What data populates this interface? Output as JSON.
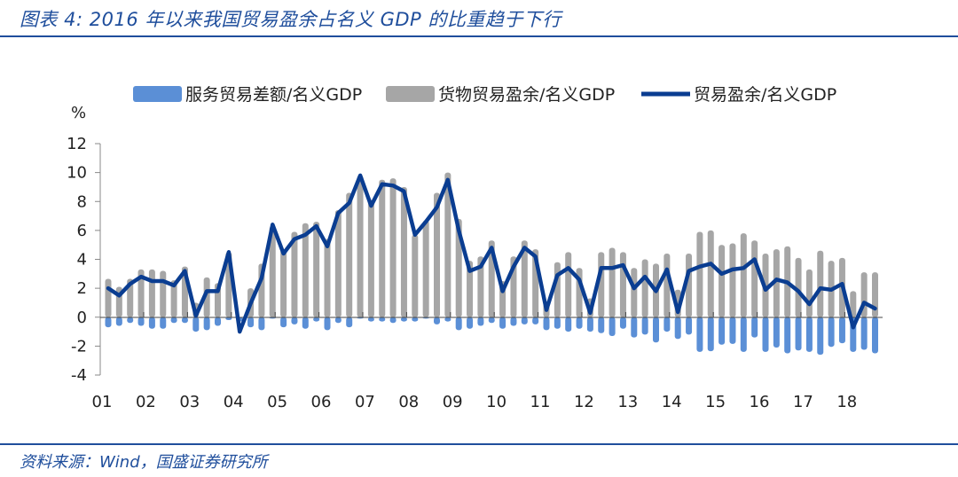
{
  "title": "图表 4:  2016 年以来我国贸易盈余占名义 GDP 的比重趋于下行",
  "source": "资料来源：Wind，国盛证券研究所",
  "chart_data": {
    "type": "bar+line",
    "ylabel": "%",
    "ylim": [
      -4,
      12
    ],
    "yticks": [
      "12",
      "10",
      "8",
      "6",
      "4",
      "2",
      "0",
      "-2",
      "-4"
    ],
    "xticks": [
      "01",
      "02",
      "03",
      "04",
      "05",
      "06",
      "07",
      "08",
      "09",
      "10",
      "11",
      "12",
      "13",
      "14",
      "15",
      "16",
      "17",
      "18"
    ],
    "x_frequency": "quarterly, 2001Q1–2018Q3",
    "legend_position": "top",
    "colors": {
      "services": "#5b8fd6",
      "goods": "#a6a6a6",
      "total": "#0a3d91"
    },
    "series": [
      {
        "name": "服务贸易差额/名义GDP",
        "kind": "bar",
        "values": [
          -0.7,
          -0.6,
          -0.4,
          -0.6,
          -0.8,
          -0.8,
          -0.4,
          -0.4,
          -1.0,
          -0.9,
          -0.6,
          -0.2,
          -0.3,
          -0.7,
          -0.9,
          -0.1,
          -0.7,
          -0.5,
          -0.8,
          -0.3,
          -0.9,
          -0.4,
          -0.7,
          -0.1,
          -0.3,
          -0.3,
          -0.4,
          -0.3,
          -0.3,
          -0.1,
          -0.5,
          -0.3,
          -0.9,
          -0.8,
          -0.6,
          -0.4,
          -0.8,
          -0.6,
          -0.5,
          -0.5,
          -0.9,
          -0.8,
          -1.0,
          -0.8,
          -1.0,
          -1.1,
          -1.3,
          -0.8,
          -1.4,
          -1.2,
          -1.75,
          -1.0,
          -1.5,
          -1.2,
          -2.4,
          -2.35,
          -1.9,
          -1.85,
          -2.4,
          -1.4,
          -2.4,
          -2.1,
          -2.5,
          -2.3,
          -2.4,
          -2.6,
          -2.05,
          -1.8,
          -2.4,
          -2.25,
          -2.5
        ]
      },
      {
        "name": "货物贸易盈余/名义GDP",
        "kind": "bar",
        "values": [
          2.65,
          2.1,
          2.65,
          3.3,
          3.3,
          3.2,
          2.55,
          3.5,
          1.0,
          2.75,
          2.35,
          4.5,
          0,
          2.0,
          3.7,
          6.3,
          4.7,
          5.9,
          6.5,
          6.6,
          5.4,
          7.4,
          8.6,
          9.8,
          8.1,
          9.5,
          9.6,
          9.0,
          5.7,
          6.7,
          8.6,
          10.0,
          6.8,
          3.9,
          4.2,
          5.3,
          2.5,
          4.2,
          5.3,
          4.7,
          1.0,
          3.8,
          4.5,
          3.4,
          1.3,
          4.5,
          4.8,
          4.5,
          3.4,
          4.0,
          3.7,
          4.4,
          1.9,
          4.4,
          5.9,
          6.0,
          5.0,
          5.1,
          5.8,
          5.3,
          4.4,
          4.7,
          4.9,
          4.1,
          3.3,
          4.6,
          3.9,
          4.1,
          1.8,
          3.1,
          3.1
        ]
      },
      {
        "name": "贸易盈余/名义GDP",
        "kind": "line",
        "values": [
          2.0,
          1.5,
          2.3,
          2.8,
          2.5,
          2.5,
          2.2,
          3.2,
          0.1,
          1.8,
          1.8,
          4.5,
          -1.0,
          0.95,
          2.7,
          6.4,
          4.4,
          5.4,
          5.7,
          6.3,
          4.9,
          7.2,
          7.9,
          9.8,
          7.7,
          9.2,
          9.1,
          8.7,
          5.7,
          6.6,
          7.6,
          9.5,
          6.0,
          3.2,
          3.5,
          4.8,
          1.8,
          3.5,
          4.8,
          4.2,
          0.5,
          2.9,
          3.4,
          2.6,
          0.3,
          3.4,
          3.4,
          3.6,
          2.0,
          2.8,
          1.8,
          3.3,
          0.35,
          3.2,
          3.5,
          3.7,
          3.0,
          3.3,
          3.4,
          4.0,
          1.9,
          2.6,
          2.4,
          1.8,
          0.9,
          2.0,
          1.9,
          2.3,
          -0.7,
          1.0,
          0.6
        ]
      }
    ]
  }
}
